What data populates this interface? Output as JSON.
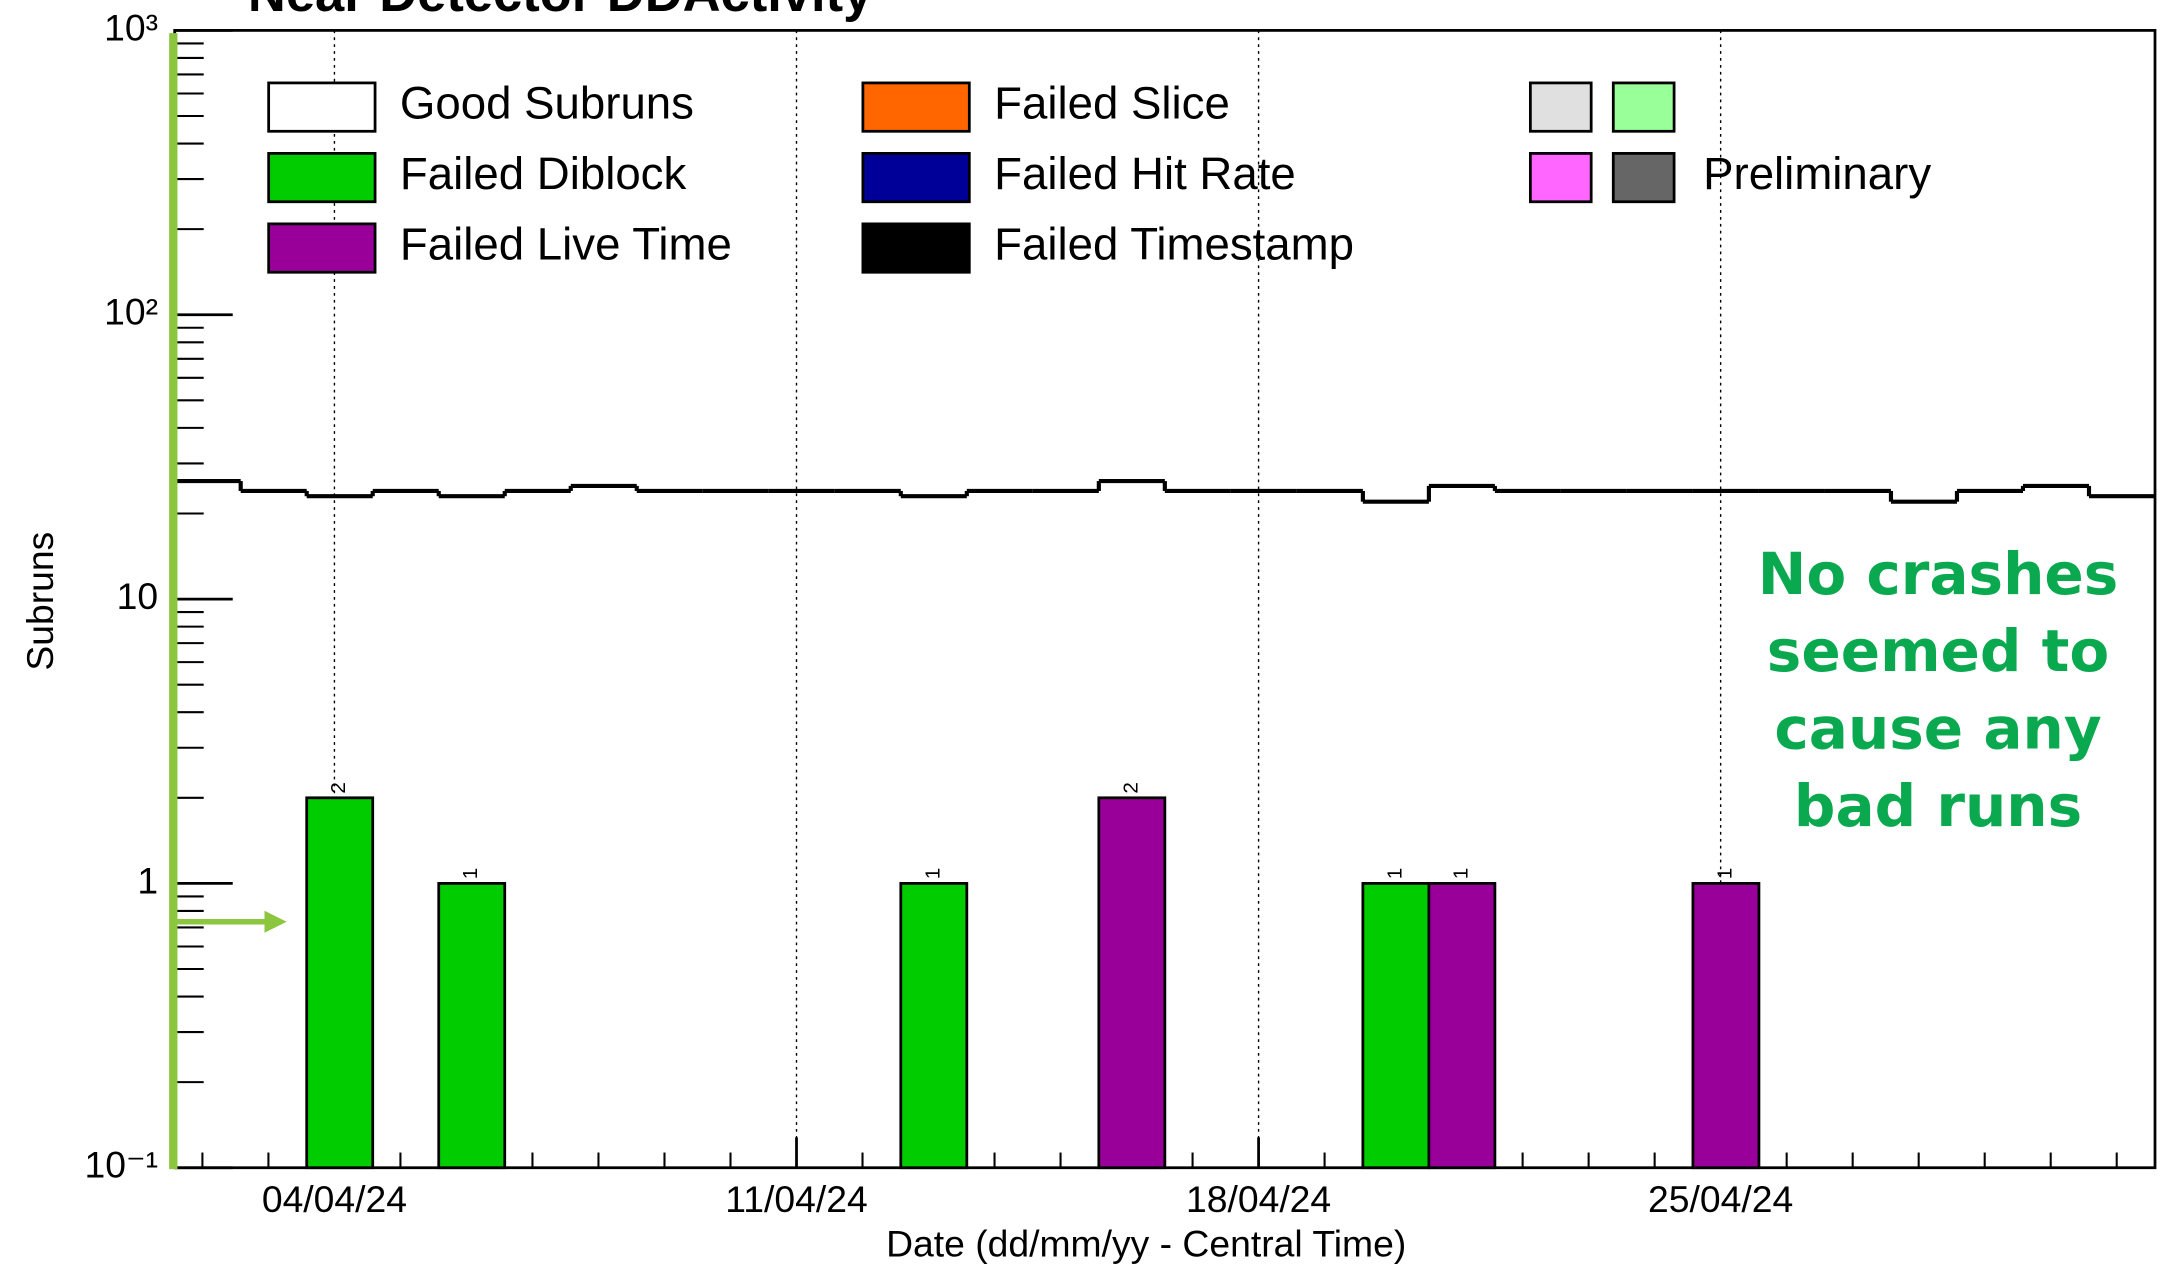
{
  "chart_data": {
    "type": "histogram",
    "title": "Near Detector DDActivity",
    "xlabel": "Date (dd/mm/yy - Central Time)",
    "ylabel": "Subruns",
    "annotation": [
      "No crashes",
      "seemed to",
      "cause any",
      "bad runs"
    ],
    "log_y": true,
    "grid": "x",
    "xlim": [
      1.58,
      31.58
    ],
    "xticks": [
      {
        "value": 4,
        "label": "04/04/24"
      },
      {
        "value": 11,
        "label": "11/04/24"
      },
      {
        "value": 18,
        "label": "18/04/24"
      },
      {
        "value": 25,
        "label": "25/04/24"
      }
    ],
    "ylim": [
      0.1,
      1000
    ],
    "yticks": [
      {
        "value": 0.1,
        "label": "10⁻¹"
      },
      1,
      10,
      {
        "value": 100,
        "label": "10²"
      },
      {
        "value": 1000,
        "label": "10³"
      }
    ],
    "bins": [
      1.58,
      2.58,
      3.58,
      4.58,
      5.58,
      6.58,
      7.58,
      8.58,
      9.58,
      10.58,
      11.58,
      12.58,
      13.58,
      14.58,
      15.58,
      16.58,
      17.58,
      18.58,
      19.58,
      20.58,
      21.58,
      22.58,
      23.58,
      24.58,
      25.58,
      26.58,
      27.58,
      28.58,
      29.58,
      30.58,
      31.58
    ],
    "series": [
      {
        "name": "Good Subruns",
        "color": "#ffffff",
        "style": "step",
        "values": [
          26,
          24,
          23,
          24,
          23,
          24,
          25,
          24,
          24,
          24,
          24,
          23,
          24,
          24,
          26,
          24,
          24,
          24,
          22,
          25,
          24,
          24,
          24,
          24,
          24,
          24,
          22,
          24,
          25,
          23
        ]
      },
      {
        "name": "Failed Diblock",
        "color": "#00cc00",
        "values": [
          null,
          null,
          2,
          null,
          1,
          null,
          null,
          null,
          null,
          null,
          null,
          1,
          null,
          null,
          null,
          null,
          null,
          null,
          1,
          null,
          null,
          null,
          null,
          null,
          null,
          null,
          null,
          null,
          null,
          null
        ]
      },
      {
        "name": "Failed Live Time",
        "color": "#990099",
        "values": [
          null,
          null,
          null,
          null,
          null,
          null,
          null,
          null,
          null,
          null,
          null,
          null,
          null,
          null,
          2,
          null,
          null,
          null,
          null,
          1,
          null,
          null,
          null,
          1,
          null,
          null,
          null,
          null,
          null,
          null
        ]
      },
      {
        "name": "Failed Slice",
        "color": "#ff6600",
        "values": [
          null,
          null,
          null,
          null,
          null,
          null,
          null,
          null,
          null,
          null,
          null,
          null,
          null,
          null,
          null,
          null,
          null,
          null,
          null,
          null,
          null,
          null,
          null,
          null,
          null,
          null,
          null,
          null,
          null,
          null
        ]
      },
      {
        "name": "Failed Hit Rate",
        "color": "#000099",
        "values": [
          null,
          null,
          null,
          null,
          null,
          null,
          null,
          null,
          null,
          null,
          null,
          null,
          null,
          null,
          null,
          null,
          null,
          null,
          null,
          null,
          null,
          null,
          null,
          null,
          null,
          null,
          null,
          null,
          null,
          null
        ]
      },
      {
        "name": "Failed Timestamp",
        "color": "#000000",
        "values": [
          null,
          null,
          null,
          null,
          null,
          null,
          null,
          null,
          null,
          null,
          null,
          null,
          null,
          null,
          null,
          null,
          null,
          null,
          null,
          null,
          null,
          null,
          null,
          null,
          null,
          null,
          null,
          null,
          null,
          null
        ]
      },
      {
        "color": "#e0e0e0",
        "values": [
          null,
          null,
          null,
          null,
          null,
          null,
          null,
          null,
          null,
          null,
          null,
          null,
          null,
          null,
          null,
          null,
          null,
          null,
          null,
          null,
          null,
          null,
          null,
          null,
          null,
          null,
          null,
          null,
          null,
          null
        ]
      },
      {
        "color": "#99ff99",
        "values": [
          null,
          null,
          null,
          null,
          null,
          null,
          null,
          null,
          null,
          null,
          null,
          null,
          null,
          null,
          null,
          null,
          null,
          null,
          null,
          null,
          null,
          null,
          null,
          null,
          null,
          null,
          null,
          null,
          null,
          null
        ]
      },
      {
        "color": "#ff66ff",
        "values": [
          null,
          null,
          null,
          null,
          null,
          null,
          null,
          null,
          null,
          null,
          null,
          null,
          null,
          null,
          null,
          null,
          null,
          null,
          null,
          null,
          null,
          null,
          null,
          null,
          null,
          null,
          null,
          null,
          null,
          null
        ]
      },
      {
        "name": "Preliminary",
        "color": "#666666",
        "values": [
          null,
          null,
          null,
          null,
          null,
          null,
          null,
          null,
          null,
          null,
          null,
          null,
          null,
          null,
          null,
          null,
          null,
          null,
          null,
          null,
          null,
          null,
          null,
          null,
          null,
          null,
          null,
          null,
          null,
          null
        ]
      }
    ]
  }
}
